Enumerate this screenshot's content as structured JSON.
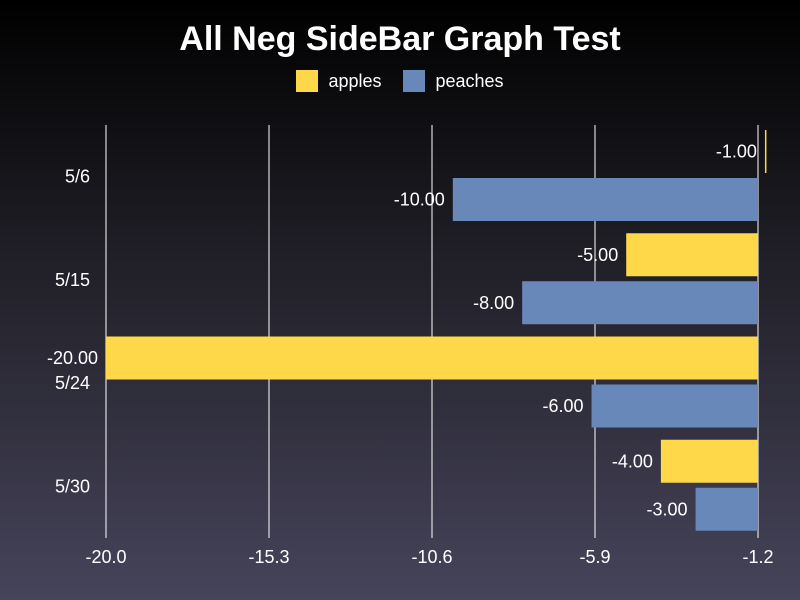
{
  "chart_data": {
    "type": "bar",
    "orientation": "horizontal",
    "title": "All Neg SideBar Graph Test",
    "categories": [
      "5/6",
      "5/15",
      "5/24",
      "5/30"
    ],
    "series": [
      {
        "name": "apples",
        "color": "#ffd84a",
        "values": [
          -1,
          -5,
          -20,
          -4
        ]
      },
      {
        "name": "peaches",
        "color": "#6788b8",
        "values": [
          -10,
          -8,
          -6,
          -3
        ]
      }
    ],
    "xlim": [
      -20.0,
      -1.2
    ],
    "xticks": [
      "-20.0",
      "-15.3",
      "-10.6",
      "-5.9",
      "-1.2"
    ],
    "data_labels": [
      [
        "-1.00",
        "-5.00",
        "-20.00",
        "-4.00"
      ],
      [
        "-10.00",
        "-8.00",
        "-6.00",
        "-3.00"
      ]
    ],
    "grid": true,
    "legend_position": "top"
  }
}
